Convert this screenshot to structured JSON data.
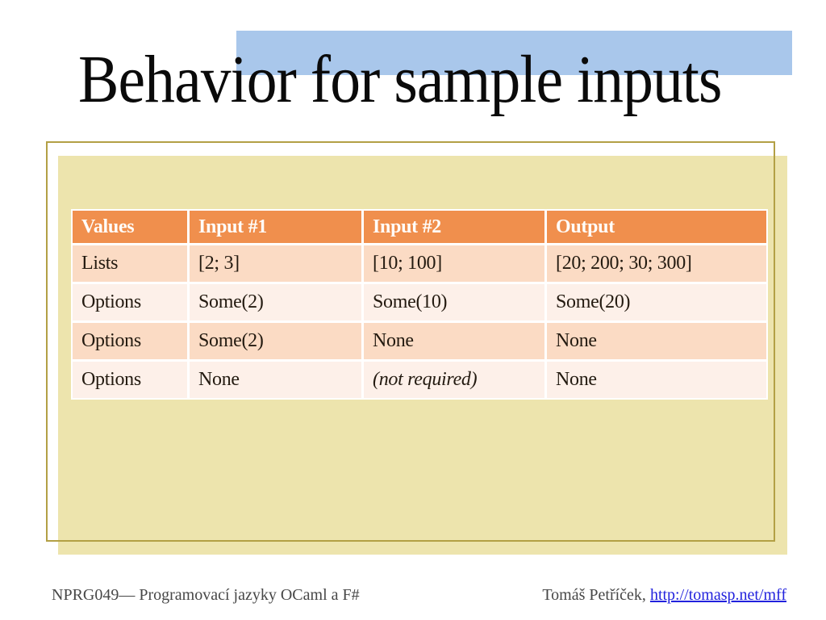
{
  "slide": {
    "title": "Behavior for sample inputs",
    "footer": {
      "left": "NPRG049— Programovací jazyky OCaml a F#",
      "right_name": "Tomáš Petříček, ",
      "right_link": "http://tomasp.net/mff"
    },
    "colors": {
      "title_accent_blue": "#A9C7EB",
      "panel_tan": "#EDE4AD",
      "panel_frame_gold": "#B3A045",
      "table_header_orange": "#F08F4D",
      "table_row_peach": "#FBDBC4",
      "table_row_light": "#FDF0E9",
      "link_blue": "#2222DD",
      "footer_gray": "#474747"
    }
  },
  "table": {
    "headers": [
      "Values",
      "Input #1",
      "Input #2",
      "Output"
    ],
    "rows": [
      [
        "Lists",
        "[2; 3]",
        "[10; 100]",
        "[20; 200; 30; 300]"
      ],
      [
        "Options",
        "Some(2)",
        "Some(10)",
        "Some(20)"
      ],
      [
        "Options",
        "Some(2)",
        "None",
        "None"
      ],
      [
        "Options",
        "None",
        "(not required)",
        "None"
      ]
    ]
  }
}
